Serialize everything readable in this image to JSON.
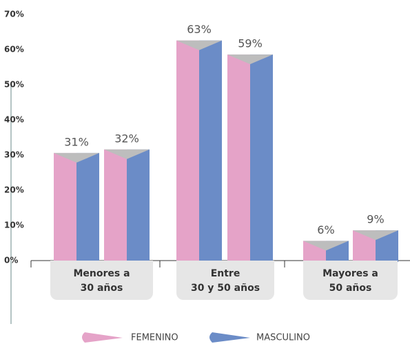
{
  "chart_data": {
    "type": "bar",
    "categories": [
      [
        "Menores a",
        "30 años"
      ],
      [
        "Entre",
        "30 y 50 años"
      ],
      [
        "Mayores a",
        "50 años"
      ]
    ],
    "series": [
      {
        "values": [
          31,
          63,
          6
        ],
        "value_labels": [
          "31%",
          "63%",
          "6%"
        ]
      },
      {
        "values": [
          32,
          59,
          9
        ],
        "value_labels": [
          "32%",
          "59%",
          "9%"
        ]
      }
    ],
    "legend": [
      {
        "name": "FEMENINO",
        "color": "#e5a3c8"
      },
      {
        "name": "MASCULINO",
        "color": "#6b8cc7"
      }
    ],
    "ylim": [
      0,
      70
    ],
    "yticks": [
      {
        "value": 0,
        "label": "0%"
      },
      {
        "value": 10,
        "label": "10%"
      },
      {
        "value": 20,
        "label": "20%"
      },
      {
        "value": 30,
        "label": "30%"
      },
      {
        "value": 40,
        "label": "40%"
      },
      {
        "value": 50,
        "label": "50%"
      },
      {
        "value": 60,
        "label": "60%"
      },
      {
        "value": 70,
        "label": "70%"
      }
    ]
  }
}
